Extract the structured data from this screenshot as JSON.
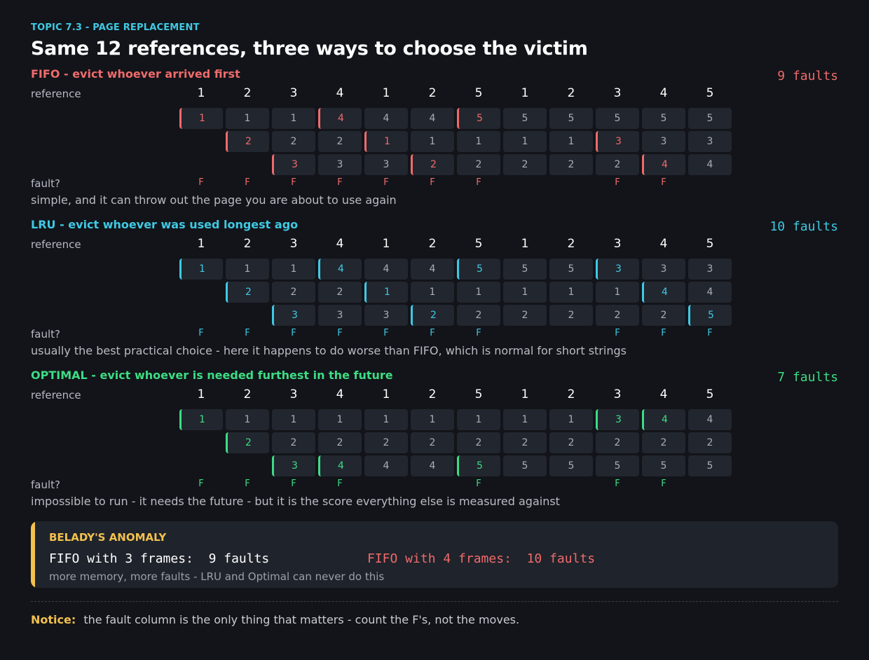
{
  "header": {
    "topic": "TOPIC 7.3  -  PAGE REPLACEMENT",
    "title": "Same 12 references, three ways to choose the victim"
  },
  "row_labels": {
    "reference": "reference",
    "fault": "fault?"
  },
  "fault_mark": "F",
  "references": [
    "1",
    "2",
    "3",
    "4",
    "1",
    "2",
    "5",
    "1",
    "2",
    "3",
    "4",
    "5"
  ],
  "colors": {
    "fifo": "#ef6b6b",
    "lru": "#3fc9e3",
    "optimal": "#3ddc84",
    "warning": "#f2c14e"
  },
  "algorithms": [
    {
      "key": "fifo",
      "title": "FIFO  -  evict whoever arrived first",
      "count_label": "9 faults",
      "note": "simple, and it can throw out the page you are about to use again",
      "frames": [
        [
          "1",
          "1",
          "1",
          "4",
          "4",
          "4",
          "5",
          "5",
          "5",
          "5",
          "5",
          "5"
        ],
        [
          "",
          "2",
          "2",
          "2",
          "1",
          "1",
          "1",
          "1",
          "1",
          "3",
          "3",
          "3"
        ],
        [
          "",
          "",
          "3",
          "3",
          "3",
          "2",
          "2",
          "2",
          "2",
          "2",
          "4",
          "4"
        ]
      ],
      "changed": [
        [
          true,
          false,
          false,
          true,
          false,
          false,
          true,
          false,
          false,
          false,
          false,
          false
        ],
        [
          false,
          true,
          false,
          false,
          true,
          false,
          false,
          false,
          false,
          true,
          false,
          false
        ],
        [
          false,
          false,
          true,
          false,
          false,
          true,
          false,
          false,
          false,
          false,
          true,
          false
        ]
      ],
      "faults": [
        true,
        true,
        true,
        true,
        true,
        true,
        true,
        false,
        false,
        true,
        true,
        false
      ]
    },
    {
      "key": "lru",
      "title": "LRU  -  evict whoever was used longest ago",
      "count_label": "10 faults",
      "note": "usually the best practical choice - here it happens to do worse than FIFO, which is normal for short strings",
      "frames": [
        [
          "1",
          "1",
          "1",
          "4",
          "4",
          "4",
          "5",
          "5",
          "5",
          "3",
          "3",
          "3"
        ],
        [
          "",
          "2",
          "2",
          "2",
          "1",
          "1",
          "1",
          "1",
          "1",
          "1",
          "4",
          "4"
        ],
        [
          "",
          "",
          "3",
          "3",
          "3",
          "2",
          "2",
          "2",
          "2",
          "2",
          "2",
          "5"
        ]
      ],
      "changed": [
        [
          true,
          false,
          false,
          true,
          false,
          false,
          true,
          false,
          false,
          true,
          false,
          false
        ],
        [
          false,
          true,
          false,
          false,
          true,
          false,
          false,
          false,
          false,
          false,
          true,
          false
        ],
        [
          false,
          false,
          true,
          false,
          false,
          true,
          false,
          false,
          false,
          false,
          false,
          true
        ]
      ],
      "faults": [
        true,
        true,
        true,
        true,
        true,
        true,
        true,
        false,
        false,
        true,
        true,
        true
      ]
    },
    {
      "key": "optimal",
      "title": "OPTIMAL  -  evict whoever is needed furthest in the future",
      "count_label": "7 faults",
      "note": "impossible to run - it needs the future - but it is the score everything else is measured against",
      "frames": [
        [
          "1",
          "1",
          "1",
          "1",
          "1",
          "1",
          "1",
          "1",
          "1",
          "3",
          "4",
          "4"
        ],
        [
          "",
          "2",
          "2",
          "2",
          "2",
          "2",
          "2",
          "2",
          "2",
          "2",
          "2",
          "2"
        ],
        [
          "",
          "",
          "3",
          "4",
          "4",
          "4",
          "5",
          "5",
          "5",
          "5",
          "5",
          "5"
        ]
      ],
      "changed": [
        [
          true,
          false,
          false,
          false,
          false,
          false,
          false,
          false,
          false,
          true,
          true,
          false
        ],
        [
          false,
          true,
          false,
          false,
          false,
          false,
          false,
          false,
          false,
          false,
          false,
          false
        ],
        [
          false,
          false,
          true,
          true,
          false,
          false,
          true,
          false,
          false,
          false,
          false,
          false
        ]
      ],
      "faults": [
        true,
        true,
        true,
        true,
        false,
        false,
        true,
        false,
        false,
        true,
        true,
        false
      ]
    }
  ],
  "belady": {
    "title": "BELADY'S ANOMALY",
    "line1": "FIFO with 3 frames:  9 faults",
    "line2": "FIFO with 4 frames:  10 faults",
    "subtitle": "more memory, more faults  -  LRU and Optimal can never do this"
  },
  "footer": {
    "notice_label": "Notice:",
    "notice_text": "the fault column is the only thing that matters - count the F's, not the moves."
  }
}
